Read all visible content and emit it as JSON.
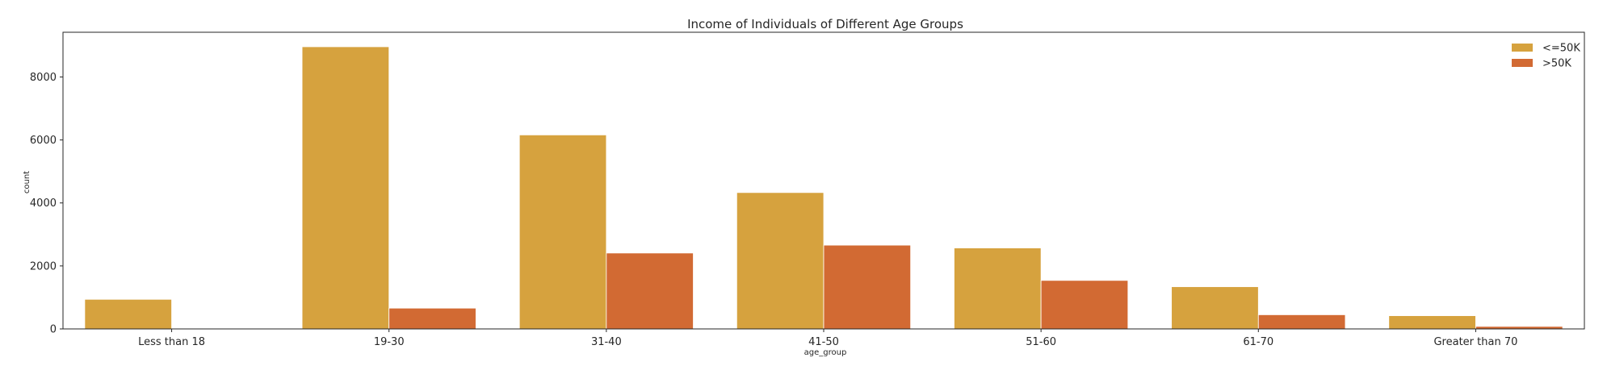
{
  "chart_data": {
    "type": "bar",
    "title": "Income of Individuals of Different Age Groups",
    "xlabel": "age_group",
    "ylabel": "count",
    "categories": [
      "Less than 18",
      "19-30",
      "31-40",
      "41-50",
      "51-60",
      "61-70",
      "Greater than 70"
    ],
    "series": [
      {
        "name": "<=50K",
        "color": "#d6a23e",
        "values": [
          940,
          8960,
          6160,
          4330,
          2570,
          1340,
          420
        ]
      },
      {
        "name": ">50K",
        "color": "#d26a33",
        "values": [
          0,
          660,
          2410,
          2660,
          1540,
          450,
          80
        ]
      }
    ],
    "yticks": [
      0,
      2000,
      4000,
      6000,
      8000
    ],
    "ylim": [
      0,
      9420
    ],
    "grid": false,
    "legend_position": "top-right"
  }
}
